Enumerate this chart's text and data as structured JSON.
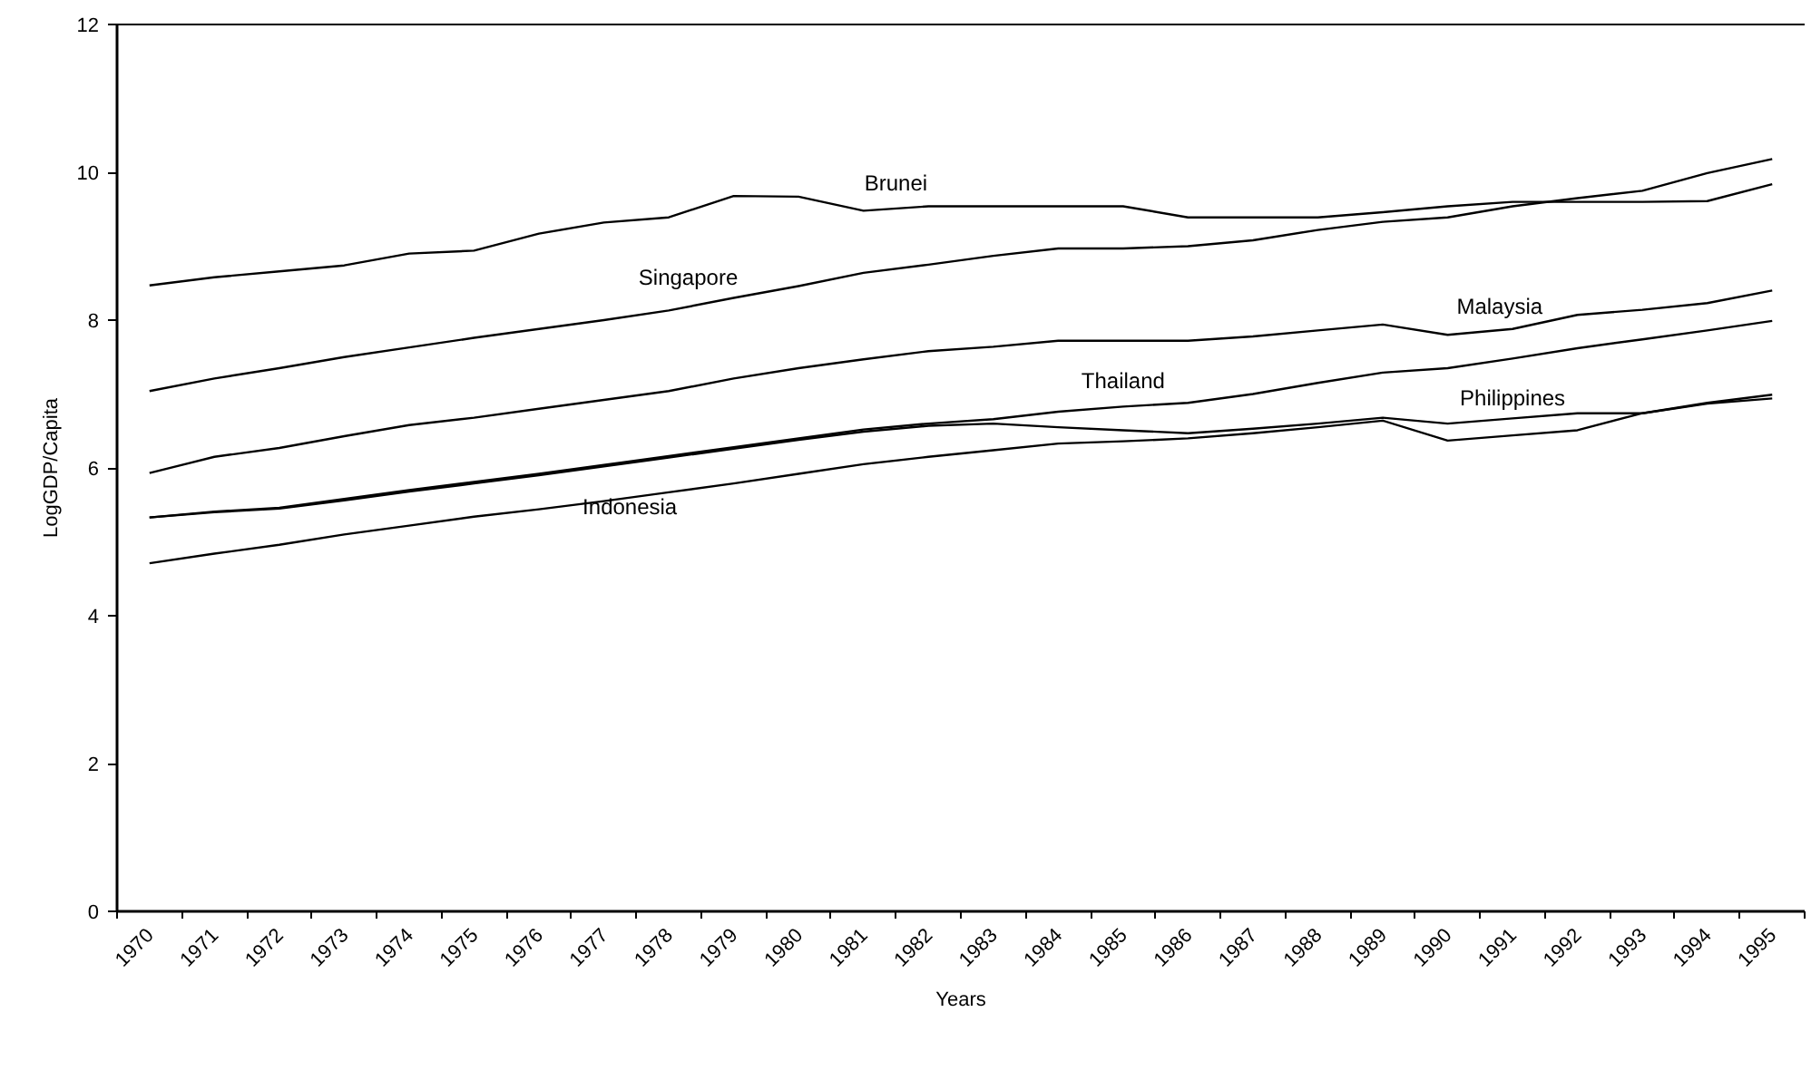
{
  "chart_data": {
    "type": "line",
    "xlabel": "Years",
    "ylabel": "LogGDP/Capita",
    "categories": [
      "1970",
      "1971",
      "1972",
      "1973",
      "1974",
      "1975",
      "1976",
      "1977",
      "1978",
      "1979",
      "1980",
      "1981",
      "1982",
      "1983",
      "1984",
      "1985",
      "1986",
      "1987",
      "1988",
      "1989",
      "1990",
      "1991",
      "1992",
      "1993",
      "1994",
      "1995"
    ],
    "series": [
      {
        "name": "Brunei",
        "color": "#000000",
        "values": [
          8.47,
          8.58,
          8.66,
          8.74,
          8.9,
          8.94,
          9.17,
          9.32,
          9.39,
          9.68,
          9.67,
          9.48,
          9.54,
          9.54,
          9.54,
          9.54,
          9.39,
          9.39,
          9.39,
          9.46,
          9.54,
          9.6,
          9.6,
          9.6,
          9.61,
          9.84
        ]
      },
      {
        "name": "Singapore",
        "color": "#000000",
        "values": [
          7.04,
          7.21,
          7.35,
          7.5,
          7.63,
          7.76,
          7.88,
          8.0,
          8.13,
          8.3,
          8.46,
          8.64,
          8.75,
          8.87,
          8.97,
          8.97,
          9.0,
          9.08,
          9.22,
          9.33,
          9.39,
          9.54,
          9.65,
          9.75,
          9.99,
          10.18
        ]
      },
      {
        "name": "Malaysia",
        "color": "#000000",
        "values": [
          5.93,
          6.15,
          6.27,
          6.43,
          6.58,
          6.68,
          6.8,
          6.92,
          7.04,
          7.21,
          7.35,
          7.47,
          7.58,
          7.64,
          7.72,
          7.72,
          7.72,
          7.78,
          7.86,
          7.94,
          7.8,
          7.88,
          8.07,
          8.14,
          8.23,
          8.4
        ]
      },
      {
        "name": "Thailand",
        "color": "#000000",
        "values": [
          5.33,
          5.41,
          5.46,
          5.58,
          5.7,
          5.81,
          5.92,
          6.04,
          6.16,
          6.28,
          6.4,
          6.52,
          6.6,
          6.66,
          6.76,
          6.83,
          6.88,
          7.0,
          7.15,
          7.29,
          7.35,
          7.48,
          7.62,
          7.74,
          7.86,
          7.99
        ]
      },
      {
        "name": "Philippines",
        "color": "#000000",
        "values": [
          5.33,
          5.4,
          5.45,
          5.56,
          5.68,
          5.79,
          5.9,
          6.02,
          6.14,
          6.26,
          6.38,
          6.49,
          6.57,
          6.6,
          6.55,
          6.51,
          6.47,
          6.53,
          6.6,
          6.68,
          6.6,
          6.67,
          6.74,
          6.74,
          6.88,
          6.99
        ]
      },
      {
        "name": "Indonesia",
        "color": "#000000",
        "values": [
          4.71,
          4.84,
          4.96,
          5.1,
          5.22,
          5.34,
          5.44,
          5.55,
          5.67,
          5.79,
          5.92,
          6.05,
          6.15,
          6.24,
          6.33,
          6.36,
          6.4,
          6.47,
          6.55,
          6.64,
          6.37,
          6.44,
          6.51,
          6.74,
          6.87,
          6.94
        ]
      }
    ],
    "ylim": [
      0,
      12
    ],
    "yticks": [
      0,
      2,
      4,
      6,
      8,
      10,
      12
    ],
    "grid": false,
    "marker": "none",
    "line_style": "solid"
  }
}
